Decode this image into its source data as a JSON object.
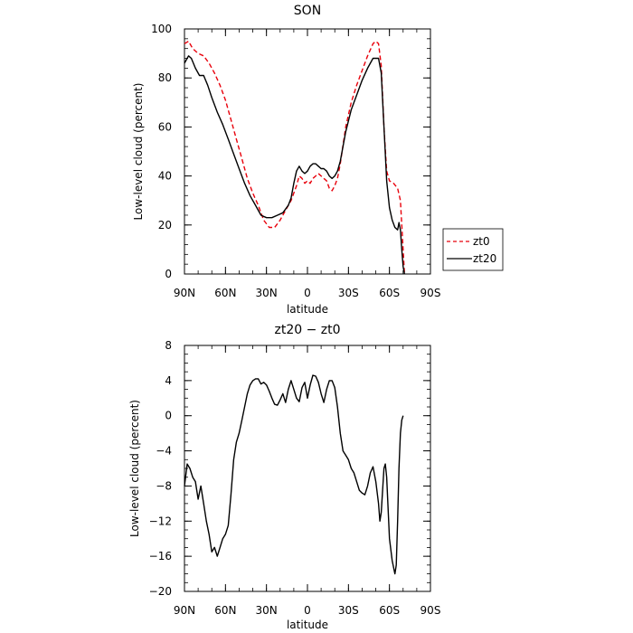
{
  "chart_data": [
    {
      "type": "line",
      "title": "SON",
      "xlabel": "latitude",
      "ylabel": "Low-level cloud (percent)",
      "xlim": [
        90,
        -90
      ],
      "ylim": [
        0,
        100
      ],
      "x_ticks": [
        90,
        60,
        30,
        0,
        -30,
        -60,
        -90
      ],
      "x_tick_labels": [
        "90N",
        "60N",
        "30N",
        "0",
        "30S",
        "60S",
        "90S"
      ],
      "y_ticks": [
        0,
        20,
        40,
        60,
        80,
        100
      ],
      "y_tick_labels": [
        "0",
        "20",
        "40",
        "60",
        "80",
        "100"
      ],
      "legend_position": "right-outside-bottom",
      "series": [
        {
          "name": "zt0",
          "color": "#e8000b",
          "style": "dashed",
          "points": [
            [
              90,
              94
            ],
            [
              87,
              95
            ],
            [
              84,
              92
            ],
            [
              80,
              90
            ],
            [
              76,
              89
            ],
            [
              72,
              86
            ],
            [
              68,
              82
            ],
            [
              64,
              77
            ],
            [
              60,
              71
            ],
            [
              56,
              63
            ],
            [
              52,
              55
            ],
            [
              48,
              47
            ],
            [
              44,
              39
            ],
            [
              40,
              33
            ],
            [
              36,
              28
            ],
            [
              32,
              22
            ],
            [
              28,
              19
            ],
            [
              24,
              19
            ],
            [
              20,
              22
            ],
            [
              16,
              26
            ],
            [
              12,
              30
            ],
            [
              8,
              36
            ],
            [
              6,
              40
            ],
            [
              4,
              39
            ],
            [
              2,
              37
            ],
            [
              0,
              38
            ],
            [
              -2,
              37
            ],
            [
              -4,
              39
            ],
            [
              -6,
              40
            ],
            [
              -8,
              41
            ],
            [
              -10,
              40
            ],
            [
              -12,
              39
            ],
            [
              -14,
              38
            ],
            [
              -16,
              35
            ],
            [
              -18,
              34
            ],
            [
              -20,
              36
            ],
            [
              -22,
              39
            ],
            [
              -24,
              45
            ],
            [
              -28,
              60
            ],
            [
              -32,
              70
            ],
            [
              -36,
              77
            ],
            [
              -40,
              83
            ],
            [
              -44,
              89
            ],
            [
              -48,
              94
            ],
            [
              -50,
              95
            ],
            [
              -52,
              94
            ],
            [
              -54,
              85
            ],
            [
              -56,
              60
            ],
            [
              -58,
              42
            ],
            [
              -60,
              38
            ],
            [
              -63,
              37
            ],
            [
              -66,
              35
            ],
            [
              -68,
              30
            ],
            [
              -70,
              10
            ],
            [
              -71,
              0
            ]
          ]
        },
        {
          "name": "zt20",
          "color": "#000000",
          "style": "solid",
          "points": [
            [
              90,
              86
            ],
            [
              87,
              89
            ],
            [
              85,
              88
            ],
            [
              82,
              84
            ],
            [
              79,
              81
            ],
            [
              76,
              81
            ],
            [
              73,
              77
            ],
            [
              70,
              72
            ],
            [
              66,
              66
            ],
            [
              62,
              61
            ],
            [
              58,
              55
            ],
            [
              54,
              49
            ],
            [
              50,
              43
            ],
            [
              46,
              37
            ],
            [
              42,
              32
            ],
            [
              38,
              28
            ],
            [
              34,
              24
            ],
            [
              30,
              23
            ],
            [
              26,
              23
            ],
            [
              22,
              24
            ],
            [
              18,
              25
            ],
            [
              14,
              28
            ],
            [
              12,
              31
            ],
            [
              10,
              37
            ],
            [
              8,
              42
            ],
            [
              6,
              44
            ],
            [
              4,
              42
            ],
            [
              2,
              41
            ],
            [
              0,
              42
            ],
            [
              -2,
              44
            ],
            [
              -4,
              45
            ],
            [
              -6,
              45
            ],
            [
              -8,
              44
            ],
            [
              -10,
              43
            ],
            [
              -12,
              43
            ],
            [
              -14,
              42
            ],
            [
              -16,
              40
            ],
            [
              -18,
              39
            ],
            [
              -20,
              40
            ],
            [
              -22,
              42
            ],
            [
              -24,
              46
            ],
            [
              -28,
              58
            ],
            [
              -32,
              67
            ],
            [
              -36,
              73
            ],
            [
              -40,
              79
            ],
            [
              -44,
              84
            ],
            [
              -48,
              88
            ],
            [
              -52,
              88
            ],
            [
              -54,
              82
            ],
            [
              -56,
              60
            ],
            [
              -58,
              38
            ],
            [
              -60,
              27
            ],
            [
              -62,
              22
            ],
            [
              -64,
              19
            ],
            [
              -66,
              18
            ],
            [
              -67,
              21
            ],
            [
              -68,
              18
            ],
            [
              -69,
              10
            ],
            [
              -70,
              3
            ],
            [
              -71,
              0
            ]
          ]
        }
      ]
    },
    {
      "type": "line",
      "title": "zt20  −  zt0",
      "xlabel": "latitude",
      "ylabel": "Low-level cloud (percent)",
      "xlim": [
        90,
        -90
      ],
      "ylim": [
        -20,
        8
      ],
      "x_ticks": [
        90,
        60,
        30,
        0,
        -30,
        -60,
        -90
      ],
      "x_tick_labels": [
        "90N",
        "60N",
        "30N",
        "0",
        "30S",
        "60S",
        "90S"
      ],
      "y_ticks": [
        -20,
        -16,
        -12,
        -8,
        -4,
        0,
        4,
        8
      ],
      "y_tick_labels": [
        "−20",
        "−16",
        "−12",
        "−8",
        "−4",
        "0",
        "4",
        "8"
      ],
      "series": [
        {
          "color": "#000000",
          "style": "solid",
          "points": [
            [
              90,
              -8
            ],
            [
              88,
              -5.5
            ],
            [
              86,
              -6
            ],
            [
              84,
              -7
            ],
            [
              82,
              -7.5
            ],
            [
              80,
              -9.5
            ],
            [
              78,
              -8
            ],
            [
              76,
              -10
            ],
            [
              74,
              -12
            ],
            [
              72,
              -13.5
            ],
            [
              70,
              -15.5
            ],
            [
              68,
              -15
            ],
            [
              66,
              -16
            ],
            [
              64,
              -15
            ],
            [
              62,
              -14
            ],
            [
              60,
              -13.5
            ],
            [
              58,
              -12.5
            ],
            [
              56,
              -9
            ],
            [
              54,
              -5
            ],
            [
              52,
              -3
            ],
            [
              50,
              -2
            ],
            [
              48,
              -0.5
            ],
            [
              46,
              1
            ],
            [
              44,
              2.5
            ],
            [
              42,
              3.5
            ],
            [
              40,
              4
            ],
            [
              38,
              4.2
            ],
            [
              36,
              4.2
            ],
            [
              34,
              3.6
            ],
            [
              32,
              3.8
            ],
            [
              30,
              3.5
            ],
            [
              28,
              2.8
            ],
            [
              26,
              2
            ],
            [
              24,
              1.3
            ],
            [
              22,
              1.2
            ],
            [
              20,
              1.8
            ],
            [
              18,
              2.5
            ],
            [
              16,
              1.5
            ],
            [
              14,
              3
            ],
            [
              12,
              4
            ],
            [
              10,
              3
            ],
            [
              8,
              2
            ],
            [
              6,
              1.6
            ],
            [
              4,
              3.2
            ],
            [
              2,
              3.8
            ],
            [
              0,
              2
            ],
            [
              -2,
              3.5
            ],
            [
              -4,
              4.6
            ],
            [
              -6,
              4.5
            ],
            [
              -8,
              3.8
            ],
            [
              -10,
              2.5
            ],
            [
              -12,
              1.5
            ],
            [
              -14,
              3
            ],
            [
              -16,
              4
            ],
            [
              -18,
              4
            ],
            [
              -20,
              3.2
            ],
            [
              -22,
              1
            ],
            [
              -24,
              -2
            ],
            [
              -26,
              -4
            ],
            [
              -28,
              -4.5
            ],
            [
              -30,
              -5
            ],
            [
              -32,
              -6
            ],
            [
              -34,
              -6.5
            ],
            [
              -36,
              -7.5
            ],
            [
              -38,
              -8.5
            ],
            [
              -40,
              -8.8
            ],
            [
              -42,
              -9
            ],
            [
              -44,
              -8
            ],
            [
              -46,
              -6.5
            ],
            [
              -48,
              -5.8
            ],
            [
              -50,
              -7.5
            ],
            [
              -52,
              -10
            ],
            [
              -53,
              -12
            ],
            [
              -54,
              -11
            ],
            [
              -56,
              -6
            ],
            [
              -57,
              -5.5
            ],
            [
              -58,
              -7
            ],
            [
              -60,
              -14
            ],
            [
              -62,
              -16.5
            ],
            [
              -64,
              -18
            ],
            [
              -65,
              -17
            ],
            [
              -66,
              -12
            ],
            [
              -67,
              -6
            ],
            [
              -68,
              -2
            ],
            [
              -69,
              -0.5
            ],
            [
              -70,
              0
            ]
          ]
        }
      ]
    }
  ]
}
